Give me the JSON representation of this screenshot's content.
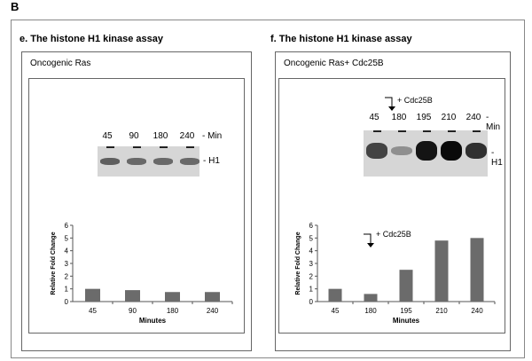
{
  "figure": {
    "panel_label": "B"
  },
  "panels": [
    {
      "heading": "e. The histone H1 kinase assay",
      "subtitle": "Oncogenic Ras",
      "gel": {
        "lane_labels": [
          "45",
          "90",
          "180",
          "240"
        ],
        "unit_label": "- Min",
        "band_label": "- H1",
        "band_intensity": [
          0.55,
          0.5,
          0.5,
          0.5
        ]
      }
    },
    {
      "heading": "f. The histone H1 kinase assay",
      "subtitle": "Oncogenic Ras+ Cdc25B",
      "annotation": "+ Cdc25B",
      "gel": {
        "lane_labels": [
          "45",
          "180",
          "195",
          "210",
          "240"
        ],
        "unit_label": "- Min",
        "band_label": "- H1",
        "band_intensity": [
          0.7,
          0.3,
          0.95,
          1.0,
          0.8
        ]
      }
    }
  ],
  "chart_data": [
    {
      "type": "bar",
      "categories": [
        "45",
        "90",
        "180",
        "240"
      ],
      "values": [
        1.0,
        0.9,
        0.75,
        0.75
      ],
      "xlabel": "Minutes",
      "ylabel": "Relative Fold Change",
      "ylim": [
        0,
        6
      ],
      "yticks": [
        0,
        1,
        2,
        3,
        4,
        5,
        6
      ],
      "bar_color": "#6b6b6b"
    },
    {
      "type": "bar",
      "categories": [
        "45",
        "180",
        "195",
        "210",
        "240"
      ],
      "values": [
        1.0,
        0.6,
        2.5,
        4.8,
        5.0
      ],
      "xlabel": "Minutes",
      "ylabel": "Relative Fold Change",
      "ylim": [
        0,
        6
      ],
      "yticks": [
        0,
        1,
        2,
        3,
        4,
        5,
        6
      ],
      "bar_color": "#6b6b6b",
      "annotation": "+ Cdc25B"
    }
  ]
}
